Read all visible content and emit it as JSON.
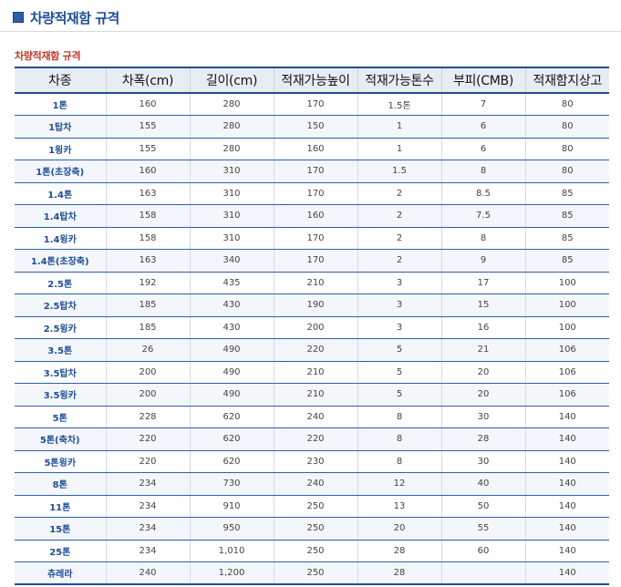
{
  "header": {
    "title": "차량적재함 규격",
    "icon": "square-bullet-icon",
    "accent_color": "#1f4e96"
  },
  "subtitle": "차량적재함 규격",
  "table": {
    "columns": [
      "차종",
      "차폭(cm)",
      "길이(cm)",
      "적재가능높이",
      "적재가능톤수",
      "부피(CMB)",
      "적재함지상고"
    ],
    "rows": [
      [
        "1톤",
        "160",
        "280",
        "170",
        "1.5톤",
        "7",
        "80"
      ],
      [
        "1탑차",
        "155",
        "280",
        "150",
        "1",
        "6",
        "80"
      ],
      [
        "1윙카",
        "155",
        "280",
        "160",
        "1",
        "6",
        "80"
      ],
      [
        "1톤(초장축)",
        "160",
        "310",
        "170",
        "1.5",
        "8",
        "80"
      ],
      [
        "1.4톤",
        "163",
        "310",
        "170",
        "2",
        "8.5",
        "85"
      ],
      [
        "1.4탑차",
        "158",
        "310",
        "160",
        "2",
        "7.5",
        "85"
      ],
      [
        "1.4윙카",
        "158",
        "310",
        "170",
        "2",
        "8",
        "85"
      ],
      [
        "1.4톤(초장축)",
        "163",
        "340",
        "170",
        "2",
        "9",
        "85"
      ],
      [
        "2.5톤",
        "192",
        "435",
        "210",
        "3",
        "17",
        "100"
      ],
      [
        "2.5탑차",
        "185",
        "430",
        "190",
        "3",
        "15",
        "100"
      ],
      [
        "2.5윙카",
        "185",
        "430",
        "200",
        "3",
        "16",
        "100"
      ],
      [
        "3.5톤",
        "26",
        "490",
        "220",
        "5",
        "21",
        "106"
      ],
      [
        "3.5탑차",
        "200",
        "490",
        "210",
        "5",
        "20",
        "106"
      ],
      [
        "3.5윙카",
        "200",
        "490",
        "210",
        "5",
        "20",
        "106"
      ],
      [
        "5톤",
        "228",
        "620",
        "240",
        "8",
        "30",
        "140"
      ],
      [
        "5톤(축차)",
        "220",
        "620",
        "220",
        "8",
        "28",
        "140"
      ],
      [
        "5톤윙카",
        "220",
        "620",
        "230",
        "8",
        "30",
        "140"
      ],
      [
        "8톤",
        "234",
        "730",
        "240",
        "12",
        "40",
        "140"
      ],
      [
        "11톤",
        "234",
        "910",
        "250",
        "13",
        "50",
        "140"
      ],
      [
        "15톤",
        "234",
        "950",
        "250",
        "20",
        "55",
        "140"
      ],
      [
        "25톤",
        "234",
        "1,010",
        "250",
        "28",
        "60",
        "140"
      ],
      [
        "츄레라",
        "240",
        "1,200",
        "250",
        "28",
        "",
        "140"
      ]
    ]
  }
}
